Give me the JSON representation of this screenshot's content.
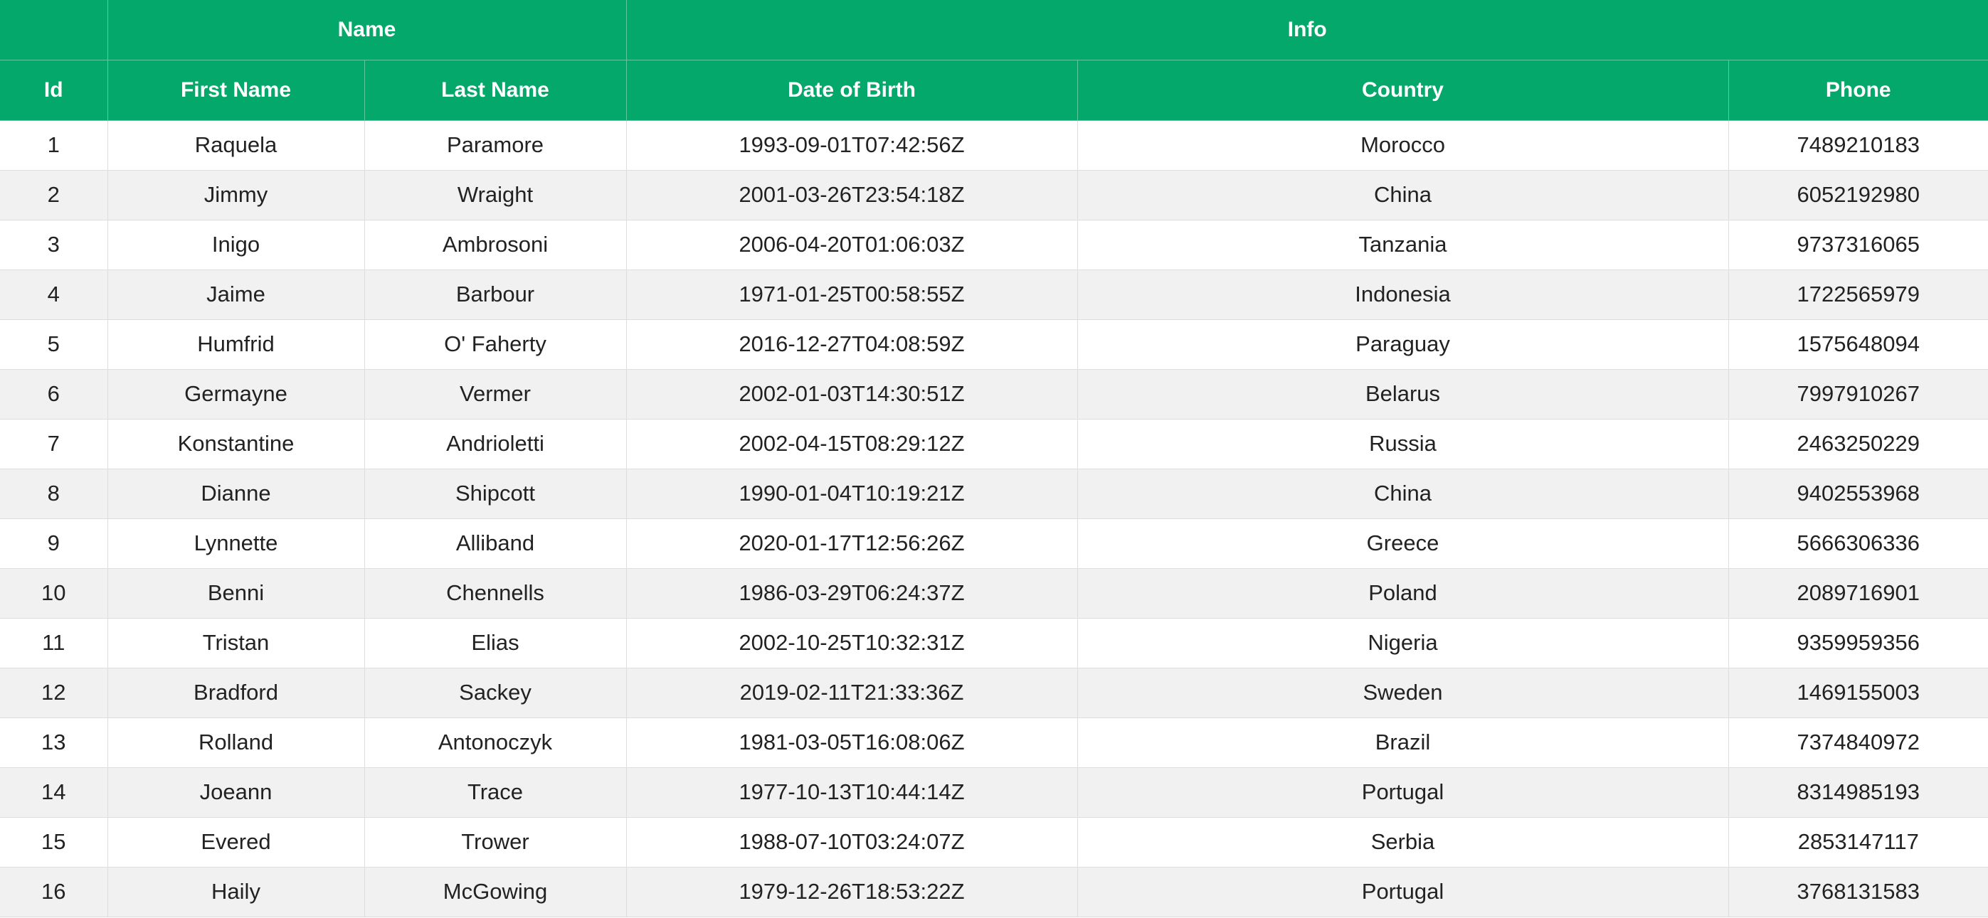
{
  "header": {
    "groups": {
      "name_label": "Name",
      "info_label": "Info"
    },
    "columns": {
      "id": "Id",
      "first_name": "First Name",
      "last_name": "Last Name",
      "dob": "Date of Birth",
      "country": "Country",
      "phone": "Phone"
    }
  },
  "colors": {
    "header_background": "#05a86b",
    "header_text": "#ffffff",
    "row_stripe": "#f1f1f1"
  },
  "rows": [
    {
      "id": "1",
      "first_name": "Raquela",
      "last_name": "Paramore",
      "dob": "1993-09-01T07:42:56Z",
      "country": "Morocco",
      "phone": "7489210183"
    },
    {
      "id": "2",
      "first_name": "Jimmy",
      "last_name": "Wraight",
      "dob": "2001-03-26T23:54:18Z",
      "country": "China",
      "phone": "6052192980"
    },
    {
      "id": "3",
      "first_name": "Inigo",
      "last_name": "Ambrosoni",
      "dob": "2006-04-20T01:06:03Z",
      "country": "Tanzania",
      "phone": "9737316065"
    },
    {
      "id": "4",
      "first_name": "Jaime",
      "last_name": "Barbour",
      "dob": "1971-01-25T00:58:55Z",
      "country": "Indonesia",
      "phone": "1722565979"
    },
    {
      "id": "5",
      "first_name": "Humfrid",
      "last_name": "O' Faherty",
      "dob": "2016-12-27T04:08:59Z",
      "country": "Paraguay",
      "phone": "1575648094"
    },
    {
      "id": "6",
      "first_name": "Germayne",
      "last_name": "Vermer",
      "dob": "2002-01-03T14:30:51Z",
      "country": "Belarus",
      "phone": "7997910267"
    },
    {
      "id": "7",
      "first_name": "Konstantine",
      "last_name": "Andrioletti",
      "dob": "2002-04-15T08:29:12Z",
      "country": "Russia",
      "phone": "2463250229"
    },
    {
      "id": "8",
      "first_name": "Dianne",
      "last_name": "Shipcott",
      "dob": "1990-01-04T10:19:21Z",
      "country": "China",
      "phone": "9402553968"
    },
    {
      "id": "9",
      "first_name": "Lynnette",
      "last_name": "Alliband",
      "dob": "2020-01-17T12:56:26Z",
      "country": "Greece",
      "phone": "5666306336"
    },
    {
      "id": "10",
      "first_name": "Benni",
      "last_name": "Chennells",
      "dob": "1986-03-29T06:24:37Z",
      "country": "Poland",
      "phone": "2089716901"
    },
    {
      "id": "11",
      "first_name": "Tristan",
      "last_name": "Elias",
      "dob": "2002-10-25T10:32:31Z",
      "country": "Nigeria",
      "phone": "9359959356"
    },
    {
      "id": "12",
      "first_name": "Bradford",
      "last_name": "Sackey",
      "dob": "2019-02-11T21:33:36Z",
      "country": "Sweden",
      "phone": "1469155003"
    },
    {
      "id": "13",
      "first_name": "Rolland",
      "last_name": "Antonoczyk",
      "dob": "1981-03-05T16:08:06Z",
      "country": "Brazil",
      "phone": "7374840972"
    },
    {
      "id": "14",
      "first_name": "Joeann",
      "last_name": "Trace",
      "dob": "1977-10-13T10:44:14Z",
      "country": "Portugal",
      "phone": "8314985193"
    },
    {
      "id": "15",
      "first_name": "Evered",
      "last_name": "Trower",
      "dob": "1988-07-10T03:24:07Z",
      "country": "Serbia",
      "phone": "2853147117"
    },
    {
      "id": "16",
      "first_name": "Haily",
      "last_name": "McGowing",
      "dob": "1979-12-26T18:53:22Z",
      "country": "Portugal",
      "phone": "3768131583"
    }
  ]
}
